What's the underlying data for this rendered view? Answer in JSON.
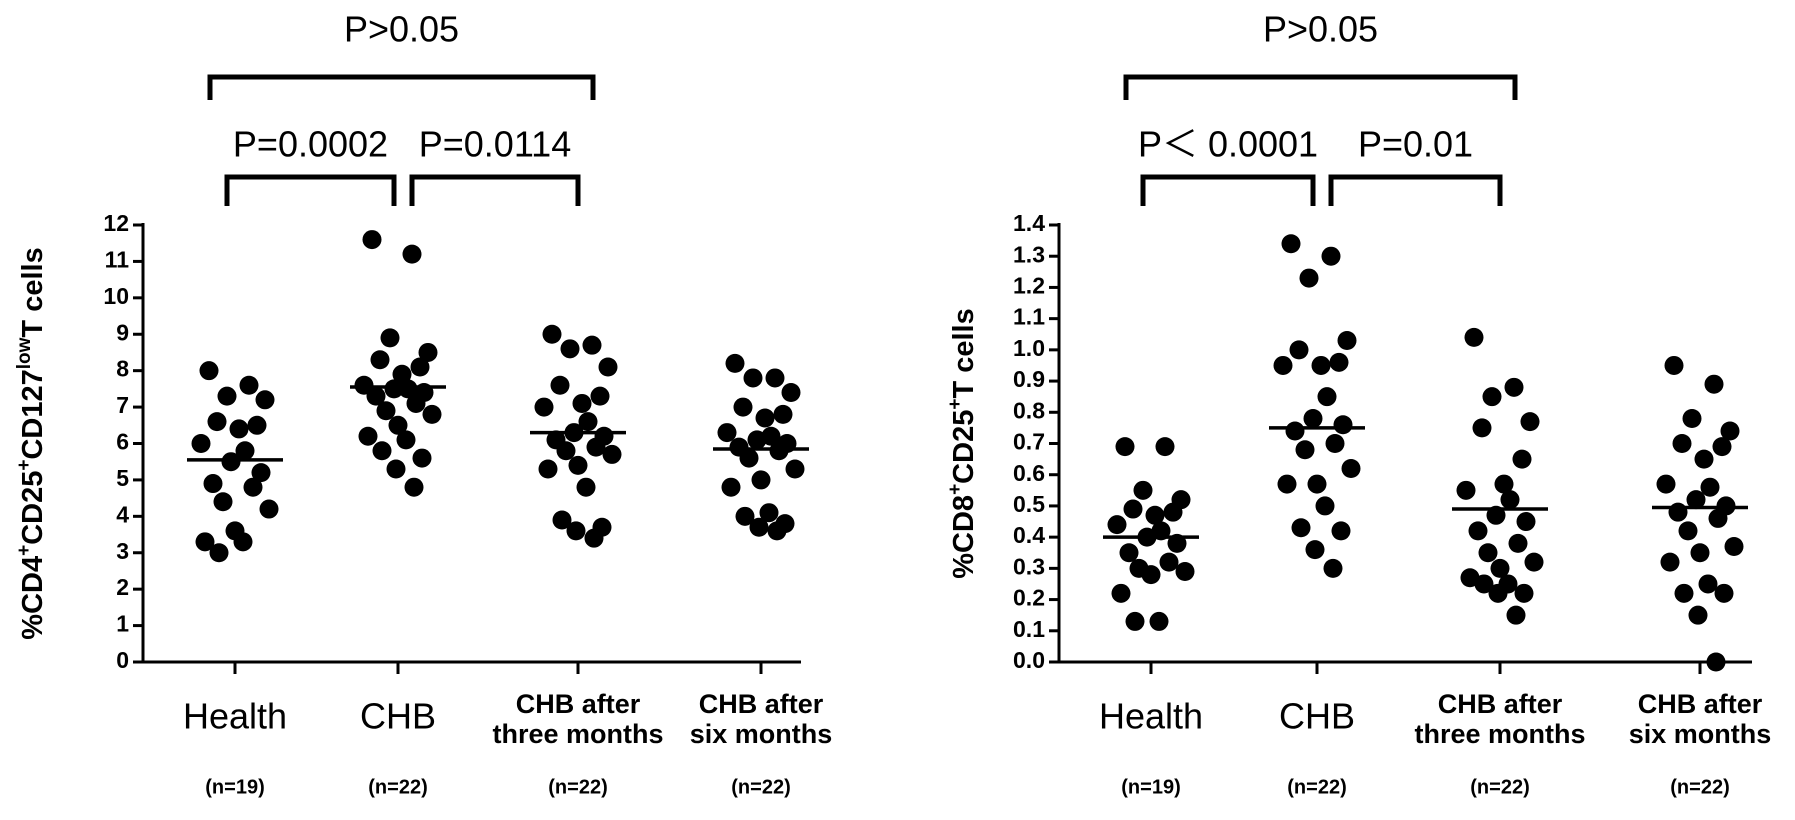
{
  "chart_data": [
    {
      "type": "dotplot",
      "ylabel": [
        {
          "text": "%CD4"
        },
        {
          "text": "+",
          "style": "sup"
        },
        {
          "text": "CD25"
        },
        {
          "text": "+",
          "style": "sup"
        },
        {
          "text": "CD127"
        },
        {
          "text": "low",
          "style": "sup"
        },
        {
          "text": "T cells"
        }
      ],
      "categories": [
        [
          "Health"
        ],
        [
          "CHB"
        ],
        [
          "CHB after",
          "three months"
        ],
        [
          "CHB after",
          "six months"
        ]
      ],
      "group_sizes": [
        "(n=19)",
        "(n=22)",
        "(n=22)",
        "(n=22)"
      ],
      "color": "#000000",
      "values": [
        [
          8.0,
          7.6,
          7.3,
          7.2,
          6.6,
          6.5,
          6.4,
          6.0,
          5.8,
          5.5,
          5.2,
          4.9,
          4.8,
          4.4,
          4.2,
          3.6,
          3.3,
          3.3,
          3.0
        ],
        [
          11.6,
          11.2,
          8.9,
          8.5,
          8.3,
          8.1,
          7.9,
          7.6,
          7.5,
          7.5,
          7.4,
          7.3,
          7.1,
          6.9,
          6.8,
          6.5,
          6.2,
          6.1,
          5.8,
          5.6,
          5.3,
          4.8
        ],
        [
          9.0,
          8.7,
          8.6,
          8.1,
          7.6,
          7.3,
          7.1,
          7.0,
          6.6,
          6.3,
          6.2,
          6.1,
          5.9,
          5.8,
          5.7,
          5.4,
          5.3,
          4.8,
          3.9,
          3.7,
          3.6,
          3.4
        ],
        [
          8.2,
          7.8,
          7.8,
          7.4,
          7.0,
          6.8,
          6.7,
          6.3,
          6.2,
          6.1,
          6.0,
          5.9,
          5.8,
          5.6,
          5.3,
          5.0,
          4.8,
          4.1,
          4.0,
          3.8,
          3.7,
          3.6
        ]
      ],
      "means": [
        5.55,
        7.55,
        6.3,
        5.85
      ],
      "ylim": [
        0,
        12
      ],
      "yticks": [
        0,
        1,
        2,
        3,
        4,
        5,
        6,
        7,
        8,
        9,
        10,
        11,
        12
      ],
      "comparisons": [
        {
          "from": 0,
          "to": 2,
          "label": "P>0.05"
        },
        {
          "from": 0,
          "to": 1,
          "label": "P=0.0002"
        },
        {
          "from": 1,
          "to": 2,
          "label": "P=0.0114"
        }
      ]
    },
    {
      "type": "dotplot",
      "ylabel": [
        {
          "text": "%CD8"
        },
        {
          "text": "+",
          "style": "sup"
        },
        {
          "text": "CD25"
        },
        {
          "text": "+",
          "style": "sup"
        },
        {
          "text": "T cells"
        }
      ],
      "categories": [
        [
          "Health"
        ],
        [
          "CHB"
        ],
        [
          "CHB after",
          "three months"
        ],
        [
          "CHB after",
          "six months"
        ]
      ],
      "group_sizes": [
        "(n=19)",
        "(n=22)",
        "(n=22)",
        "(n=22)"
      ],
      "color": "#000000",
      "values": [
        [
          0.69,
          0.69,
          0.55,
          0.52,
          0.49,
          0.48,
          0.47,
          0.44,
          0.42,
          0.4,
          0.38,
          0.35,
          0.32,
          0.3,
          0.29,
          0.28,
          0.22,
          0.13,
          0.13
        ],
        [
          1.34,
          1.3,
          1.23,
          1.03,
          1.0,
          0.96,
          0.95,
          0.95,
          0.85,
          0.78,
          0.76,
          0.74,
          0.7,
          0.68,
          0.62,
          0.57,
          0.57,
          0.5,
          0.43,
          0.42,
          0.36,
          0.3
        ],
        [
          1.04,
          0.88,
          0.85,
          0.77,
          0.75,
          0.65,
          0.57,
          0.55,
          0.52,
          0.47,
          0.45,
          0.42,
          0.38,
          0.35,
          0.32,
          0.3,
          0.27,
          0.25,
          0.25,
          0.22,
          0.22,
          0.15
        ],
        [
          0.95,
          0.89,
          0.78,
          0.74,
          0.7,
          0.69,
          0.65,
          0.57,
          0.56,
          0.52,
          0.5,
          0.48,
          0.46,
          0.42,
          0.37,
          0.35,
          0.32,
          0.25,
          0.22,
          0.22,
          0.15,
          0.0
        ]
      ],
      "means": [
        0.4,
        0.75,
        0.49,
        0.495
      ],
      "ylim": [
        0,
        1.4
      ],
      "yticks": [
        {
          "value": 0,
          "label": "0.0"
        },
        0.1,
        0.2,
        0.3,
        0.4,
        0.5,
        0.6,
        0.7,
        0.8,
        0.9,
        {
          "value": 1,
          "label": "1.0"
        },
        1.1,
        1.2,
        1.3,
        1.4
      ],
      "comparisons": [
        {
          "from": 0,
          "to": 2,
          "label": "P>0.05"
        },
        {
          "from": 0,
          "to": 1,
          "label": "P＜ 0.0001"
        },
        {
          "from": 1,
          "to": 2,
          "label": "P=0.01"
        }
      ]
    }
  ]
}
